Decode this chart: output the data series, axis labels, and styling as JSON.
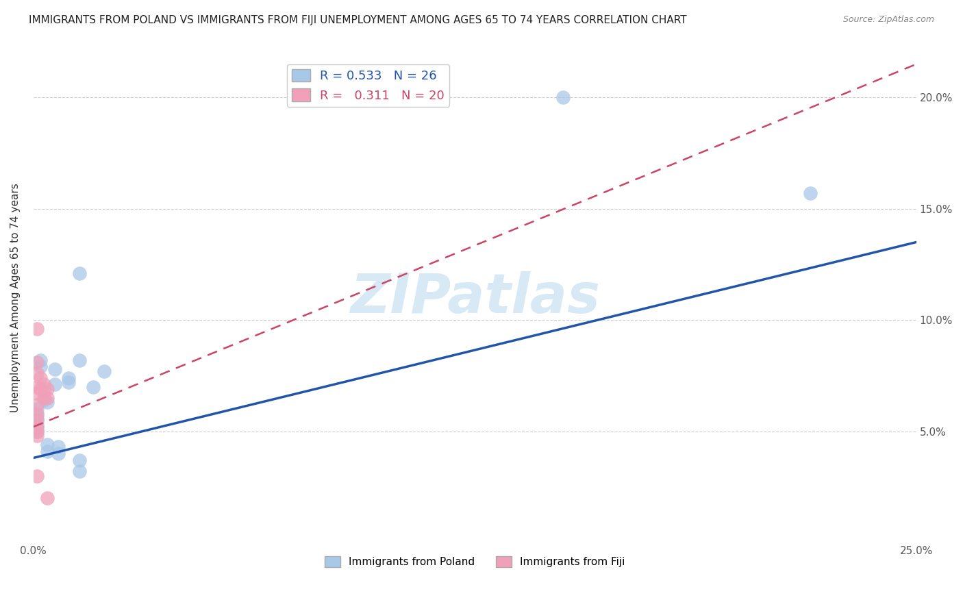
{
  "title": "IMMIGRANTS FROM POLAND VS IMMIGRANTS FROM FIJI UNEMPLOYMENT AMONG AGES 65 TO 74 YEARS CORRELATION CHART",
  "source": "Source: ZipAtlas.com",
  "ylabel": "Unemployment Among Ages 65 to 74 years",
  "xlim": [
    0.0,
    0.25
  ],
  "ylim": [
    0.0,
    0.22
  ],
  "xticks": [
    0.0,
    0.05,
    0.1,
    0.15,
    0.2,
    0.25
  ],
  "yticks": [
    0.05,
    0.1,
    0.15,
    0.2
  ],
  "xticklabels": [
    "0.0%",
    "",
    "",
    "",
    "",
    "25.0%"
  ],
  "yticklabels": [
    "5.0%",
    "10.0%",
    "15.0%",
    "20.0%"
  ],
  "poland_R": 0.533,
  "poland_N": 26,
  "fiji_R": 0.311,
  "fiji_N": 20,
  "poland_color": "#a8c8e8",
  "fiji_color": "#f0a0b8",
  "poland_line_color": "#2255aa",
  "fiji_line_color": "#cc4466",
  "watermark_text": "ZIPatlas",
  "poland_line": [
    0.0,
    0.038,
    0.25,
    0.135
  ],
  "fiji_line": [
    0.0,
    0.052,
    0.25,
    0.215
  ],
  "poland_points": [
    [
      0.001,
      0.06
    ],
    [
      0.001,
      0.057
    ],
    [
      0.001,
      0.055
    ],
    [
      0.001,
      0.053
    ],
    [
      0.001,
      0.051
    ],
    [
      0.001,
      0.05
    ],
    [
      0.002,
      0.082
    ],
    [
      0.002,
      0.079
    ],
    [
      0.003,
      0.064
    ],
    [
      0.004,
      0.063
    ],
    [
      0.004,
      0.044
    ],
    [
      0.004,
      0.041
    ],
    [
      0.006,
      0.078
    ],
    [
      0.006,
      0.071
    ],
    [
      0.007,
      0.043
    ],
    [
      0.007,
      0.04
    ],
    [
      0.01,
      0.074
    ],
    [
      0.01,
      0.072
    ],
    [
      0.013,
      0.121
    ],
    [
      0.013,
      0.082
    ],
    [
      0.013,
      0.037
    ],
    [
      0.013,
      0.032
    ],
    [
      0.017,
      0.07
    ],
    [
      0.02,
      0.077
    ],
    [
      0.15,
      0.2
    ],
    [
      0.22,
      0.157
    ]
  ],
  "fiji_points": [
    [
      0.001,
      0.096
    ],
    [
      0.001,
      0.081
    ],
    [
      0.001,
      0.076
    ],
    [
      0.001,
      0.07
    ],
    [
      0.001,
      0.067
    ],
    [
      0.001,
      0.062
    ],
    [
      0.001,
      0.058
    ],
    [
      0.001,
      0.055
    ],
    [
      0.001,
      0.052
    ],
    [
      0.001,
      0.05
    ],
    [
      0.001,
      0.048
    ],
    [
      0.002,
      0.074
    ],
    [
      0.002,
      0.069
    ],
    [
      0.003,
      0.071
    ],
    [
      0.003,
      0.068
    ],
    [
      0.003,
      0.065
    ],
    [
      0.004,
      0.069
    ],
    [
      0.004,
      0.065
    ],
    [
      0.004,
      0.02
    ],
    [
      0.001,
      0.03
    ]
  ]
}
